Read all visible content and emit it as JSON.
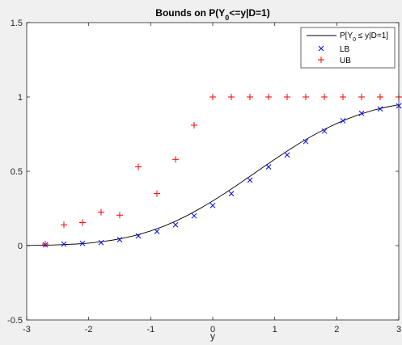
{
  "chart_data": {
    "type": "line",
    "title": "Bounds on P(Y0<=y|D=1)",
    "xlabel": "y",
    "ylabel": "",
    "xlim": [
      -3,
      3
    ],
    "ylim": [
      -0.5,
      1.5
    ],
    "xticks": [
      -3,
      -2,
      -1,
      0,
      1,
      2,
      3
    ],
    "yticks": [
      -0.5,
      0,
      0.5,
      1,
      1.5
    ],
    "ytick_labels": [
      "-0.5",
      "0",
      "0.5",
      "1",
      "1.5"
    ],
    "grid": false,
    "legend_position": "top-right",
    "legend": [
      {
        "label": "P[Y0 ≤ y|D=1]",
        "marker": "line",
        "color": "#000000"
      },
      {
        "label": "LB",
        "marker": "x",
        "color": "#0000ff"
      },
      {
        "label": "UB",
        "marker": "+",
        "color": "#ff0000"
      }
    ],
    "series": [
      {
        "name": "P[Y0 ≤ y|D=1]",
        "style": "line",
        "color": "#000000",
        "x": [
          -3.0,
          -2.8,
          -2.6,
          -2.4,
          -2.2,
          -2.0,
          -1.8,
          -1.6,
          -1.4,
          -1.2,
          -1.0,
          -0.8,
          -0.6,
          -0.4,
          -0.2,
          0.0,
          0.2,
          0.4,
          0.6,
          0.8,
          1.0,
          1.2,
          1.4,
          1.6,
          1.8,
          2.0,
          2.2,
          2.4,
          2.6,
          2.8,
          3.0
        ],
        "y": [
          0.001,
          0.002,
          0.004,
          0.007,
          0.011,
          0.017,
          0.026,
          0.038,
          0.054,
          0.074,
          0.099,
          0.129,
          0.164,
          0.205,
          0.251,
          0.3,
          0.353,
          0.409,
          0.466,
          0.524,
          0.581,
          0.636,
          0.689,
          0.737,
          0.782,
          0.822,
          0.857,
          0.887,
          0.912,
          0.932,
          0.948
        ]
      },
      {
        "name": "LB",
        "style": "x",
        "color": "#0000ff",
        "x": [
          -2.7,
          -2.4,
          -2.1,
          -1.8,
          -1.5,
          -1.2,
          -0.9,
          -0.6,
          -0.3,
          0.0,
          0.3,
          0.6,
          0.9,
          1.2,
          1.5,
          1.8,
          2.1,
          2.4,
          2.7,
          3.0
        ],
        "y": [
          0.005,
          0.01,
          0.015,
          0.02,
          0.04,
          0.065,
          0.095,
          0.14,
          0.2,
          0.27,
          0.35,
          0.44,
          0.53,
          0.61,
          0.7,
          0.77,
          0.84,
          0.89,
          0.92,
          0.94
        ]
      },
      {
        "name": "UB",
        "style": "+",
        "color": "#ff0000",
        "x": [
          -2.7,
          -2.4,
          -2.1,
          -1.8,
          -1.5,
          -1.2,
          -0.9,
          -0.6,
          -0.3,
          0.0,
          0.3,
          0.6,
          0.9,
          1.2,
          1.5,
          1.8,
          2.1,
          2.4,
          2.7,
          3.0
        ],
        "y": [
          0.01,
          0.14,
          0.155,
          0.225,
          0.205,
          0.53,
          0.35,
          0.58,
          0.81,
          1.0,
          1.0,
          1.0,
          1.0,
          1.0,
          1.0,
          1.0,
          1.0,
          1.0,
          1.0,
          1.0
        ]
      }
    ]
  }
}
